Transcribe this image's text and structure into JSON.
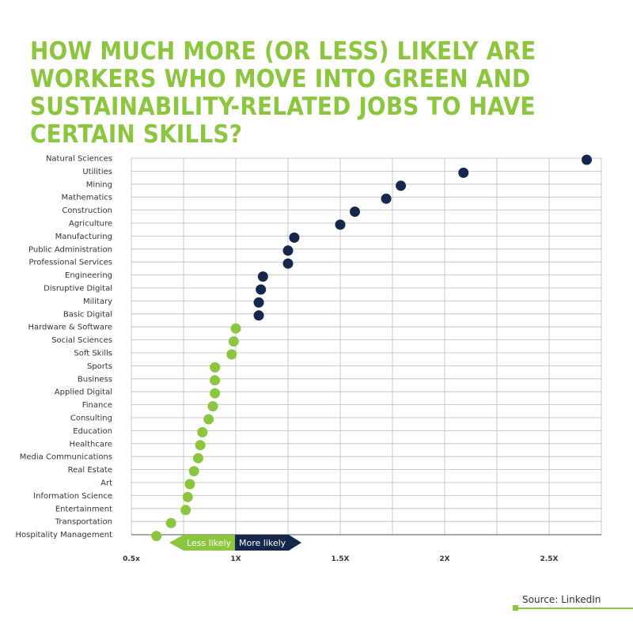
{
  "title": "HOW MUCH MORE (OR LESS) LIKELY ARE WORKERS WHO MOVE INTO GREEN AND SUSTAINABILITY-RELATED JOBS TO HAVE CERTAIN SKILLS?",
  "source": "Source: LinkedIn",
  "colors": {
    "title": "#8cc63f",
    "more": "#15274a",
    "less": "#8cc63f",
    "grid": "#bbbbbb"
  },
  "legend": {
    "less": "Less likely",
    "more": "More likely"
  },
  "chart_data": {
    "type": "scatter",
    "title": "HOW MUCH MORE (OR LESS) LIKELY ARE WORKERS WHO MOVE INTO GREEN AND SUSTAINABILITY-RELATED JOBS TO HAVE CERTAIN SKILLS?",
    "xlabel": "",
    "ylabel": "",
    "xlim": [
      0.5,
      2.75
    ],
    "x_ticks": [
      0.5,
      1.0,
      1.5,
      2.0,
      2.5
    ],
    "x_tick_labels": [
      "0.5x",
      "1X",
      "1.5X",
      "2X",
      "2.5X"
    ],
    "grid": true,
    "reference": 1.0,
    "categories": [
      "Natural Sciences",
      "Utilities",
      "Mining",
      "Mathematics",
      "Construction",
      "Agriculture",
      "Manufacturing",
      "Public Administration",
      "Professional Services",
      "Engineering",
      "Disruptive Digital",
      "Military",
      "Basic Digital",
      "Hardware & Software",
      "Social Sciences",
      "Soft Skills",
      "Sports",
      "Business",
      "Applied Digital",
      "Finance",
      "Consulting",
      "Education",
      "Healthcare",
      "Media Communications",
      "Real Estate",
      "Art",
      "Information Science",
      "Entertainment",
      "Transportation",
      "Hospitality Management"
    ],
    "values": [
      2.68,
      2.09,
      1.79,
      1.72,
      1.57,
      1.5,
      1.28,
      1.25,
      1.25,
      1.13,
      1.12,
      1.11,
      1.11,
      1.0,
      0.99,
      0.98,
      0.9,
      0.9,
      0.9,
      0.89,
      0.87,
      0.84,
      0.83,
      0.82,
      0.8,
      0.78,
      0.77,
      0.76,
      0.69,
      0.62
    ]
  }
}
